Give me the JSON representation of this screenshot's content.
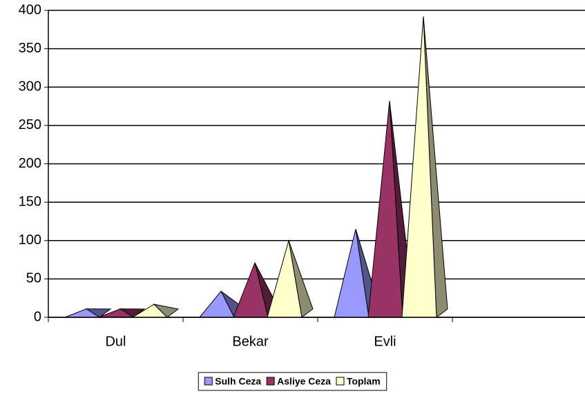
{
  "chart_data": {
    "type": "pyramid",
    "categories": [
      "Dul",
      "Bekar",
      "Evli"
    ],
    "series": [
      {
        "name": "Sulh Ceza",
        "color": "#9999ff",
        "values": [
          11,
          34,
          115
        ]
      },
      {
        "name": "Asliye Ceza",
        "color": "#993366",
        "values": [
          11,
          71,
          282
        ]
      },
      {
        "name": "Toplam",
        "color": "#ffffcc",
        "values": [
          17,
          100,
          392
        ]
      }
    ],
    "ylim": [
      0,
      400
    ],
    "yticks": [
      0,
      50,
      100,
      150,
      200,
      250,
      300,
      350,
      400
    ],
    "grid": true,
    "legend": "bottom"
  }
}
